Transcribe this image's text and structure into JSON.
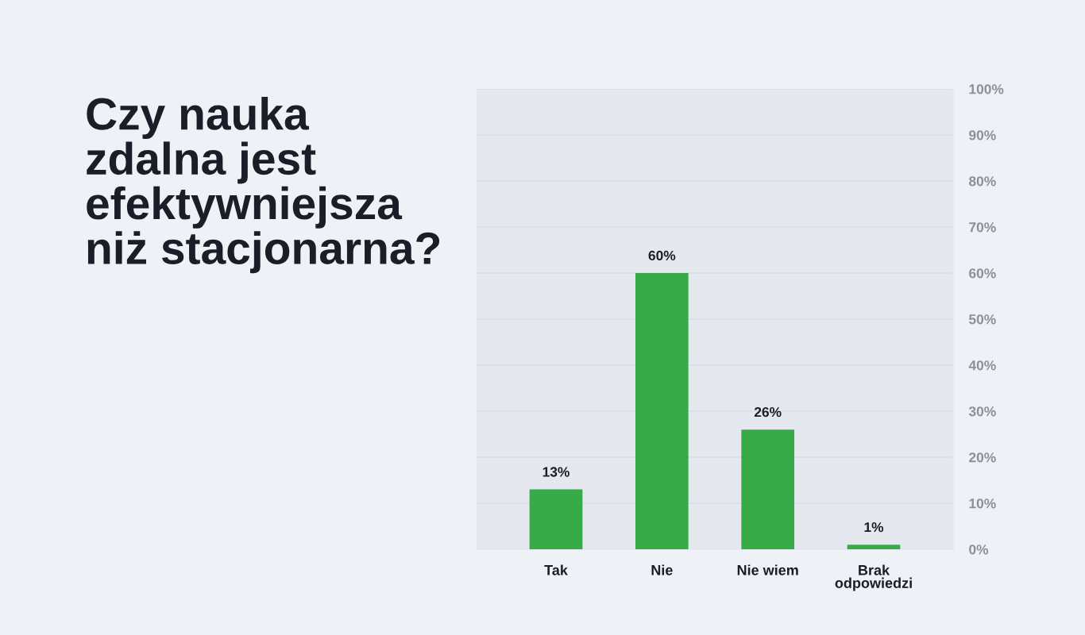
{
  "chart_data": {
    "type": "bar",
    "title": "Czy nauka\nzdalna jest\nefektywniejsza\nniż stacjonarna?",
    "categories": [
      "Tak",
      "Nie",
      "Nie wiem",
      "Brak\nodpowiedzi"
    ],
    "values": [
      13,
      60,
      26,
      1
    ],
    "color": "#37ab48",
    "value_labels": [
      "13%",
      "60%",
      "26%",
      "1%"
    ],
    "ylim": [
      0,
      100
    ],
    "yticks": [
      {
        "value": 0,
        "label": "0%"
      },
      {
        "value": 10,
        "label": "10%"
      },
      {
        "value": 20,
        "label": "20%"
      },
      {
        "value": 30,
        "label": "30%"
      },
      {
        "value": 40,
        "label": "40%"
      },
      {
        "value": 50,
        "label": "50%"
      },
      {
        "value": 60,
        "label": "60%"
      },
      {
        "value": 70,
        "label": "70%"
      },
      {
        "value": 80,
        "label": "80%"
      },
      {
        "value": 90,
        "label": "90%"
      },
      {
        "value": 100,
        "label": "100%"
      }
    ],
    "grid": "y"
  }
}
